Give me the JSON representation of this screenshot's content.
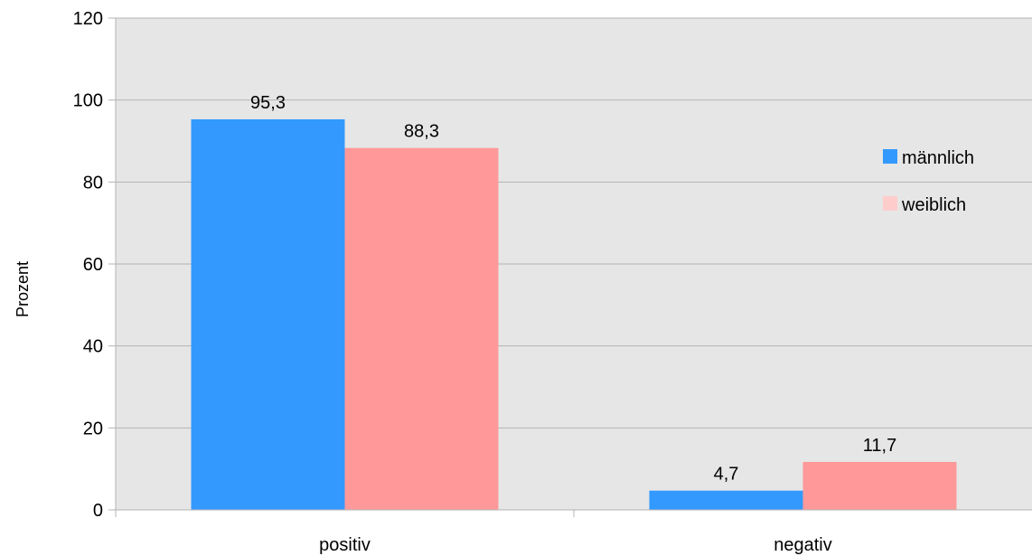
{
  "chart_data": {
    "type": "bar",
    "categories": [
      "positiv",
      "negativ"
    ],
    "series": [
      {
        "name": "männlich",
        "values": [
          95.3,
          4.7
        ],
        "labels": [
          "95,3",
          "4,7"
        ],
        "color": "#3399ff"
      },
      {
        "name": "weiblich",
        "values": [
          88.3,
          11.7
        ],
        "labels": [
          "88,3",
          "11,7"
        ],
        "color": "#ff9999"
      }
    ],
    "legend_swatch_colors": [
      "#3399ff",
      "#ffcccc"
    ],
    "yticks": [
      "0",
      "20",
      "40",
      "60",
      "80",
      "100",
      "120"
    ],
    "ylim": [
      0,
      120
    ],
    "ylabel": "Prozent",
    "xlabel": "",
    "grid": true,
    "legend_position": "right",
    "plot_background": "#e6e6e6",
    "grid_color": "#b3b3b3"
  }
}
